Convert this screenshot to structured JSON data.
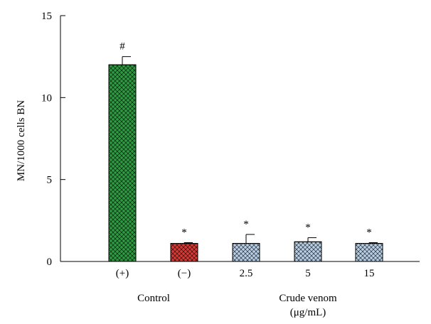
{
  "chart_data": {
    "type": "bar",
    "categories": [
      "(+)",
      "(−)",
      "2.5",
      "5",
      "15"
    ],
    "values": [
      12.0,
      1.1,
      1.1,
      1.2,
      1.1
    ],
    "errors": [
      0.5,
      0.05,
      0.55,
      0.25,
      0.05
    ],
    "significance": [
      "#",
      "*",
      "*",
      "*",
      "*"
    ],
    "bar_colors": [
      "#2e9a41",
      "#d63a36",
      "#b7cfe6",
      "#b7cfe6",
      "#b7cfe6"
    ],
    "ylabel": "MN/1000 cells BN",
    "ylim": [
      0,
      15
    ],
    "yticks": [
      0,
      5,
      10,
      15
    ],
    "groups": [
      {
        "label": "Control",
        "categories": [
          "(+)",
          "(−)"
        ]
      },
      {
        "label": "Crude venom",
        "label2": "(μg/mL)",
        "categories": [
          "2.5",
          "5",
          "15"
        ]
      }
    ],
    "grid": false,
    "pattern": "crosshatch"
  }
}
